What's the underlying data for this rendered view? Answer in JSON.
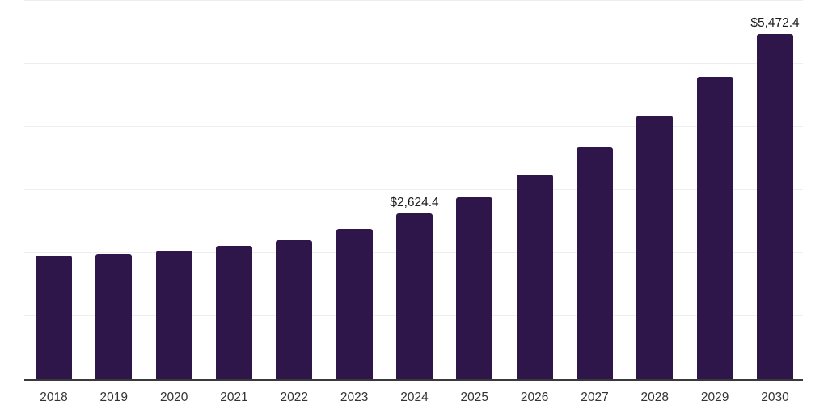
{
  "chart_data": {
    "type": "bar",
    "categories": [
      "2018",
      "2019",
      "2020",
      "2021",
      "2022",
      "2023",
      "2024",
      "2025",
      "2026",
      "2027",
      "2028",
      "2029",
      "2030"
    ],
    "values": [
      1960,
      1985,
      2035,
      2110,
      2205,
      2380,
      2624.4,
      2885,
      3240,
      3680,
      4180,
      4795,
      5472.4
    ],
    "point_labels": [
      "",
      "",
      "",
      "",
      "",
      "",
      "$2,624.4",
      "",
      "",
      "",
      "",
      "",
      "$5,472.4"
    ],
    "title": "",
    "xlabel": "",
    "ylabel": "",
    "ylim": [
      0,
      6000
    ],
    "gridline_step": 1000,
    "grid": "horizontal",
    "legend": "none",
    "colors": {
      "bar": "#2f164a",
      "gridline": "#eeeeee",
      "axis_line": "#3a3a3a",
      "tick_label": "#333333",
      "data_label": "#1a1a1a",
      "background": "#ffffff"
    }
  }
}
